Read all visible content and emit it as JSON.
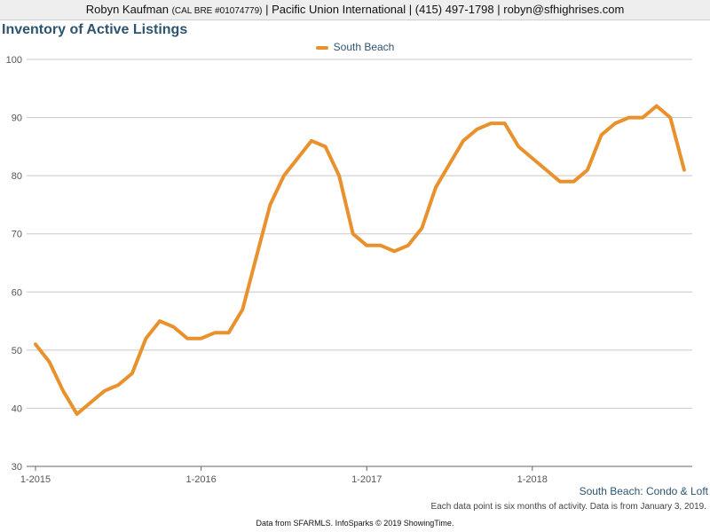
{
  "header": {
    "name": "Robyn Kaufman",
    "license": "(CAL BRE #01074779)",
    "rest": "| Pacific Union International | (415) 497-1798 | robyn@sfhighrises.com"
  },
  "chart_data": {
    "type": "line",
    "title": "Inventory of Active Listings",
    "xlabel": "",
    "ylabel": "",
    "ylim": [
      30,
      100
    ],
    "yticks": [
      "30",
      "40",
      "50",
      "60",
      "70",
      "80",
      "90",
      "100"
    ],
    "xticks": [
      "1-2015",
      "1-2016",
      "1-2017",
      "1-2018"
    ],
    "legend_position": "top-center",
    "grid": true,
    "series": [
      {
        "name": "South Beach",
        "color": "#e8912d",
        "values": [
          51,
          48,
          43,
          39,
          41,
          43,
          44,
          46,
          52,
          55,
          54,
          52,
          52,
          53,
          53,
          57,
          66,
          75,
          80,
          83,
          86,
          85,
          80,
          70,
          68,
          68,
          67,
          68,
          71,
          78,
          82,
          86,
          88,
          89,
          89,
          85,
          83,
          81,
          79,
          79,
          81,
          87,
          89,
          90,
          90,
          92,
          90,
          81
        ]
      }
    ]
  },
  "footer": {
    "area_label": "South Beach: Condo & Loft",
    "note": "Each data point is six months of activity. Data is from January 3, 2019.",
    "source": "Data from SFARMLS. InfoSparks © 2019 ShowingTime."
  }
}
